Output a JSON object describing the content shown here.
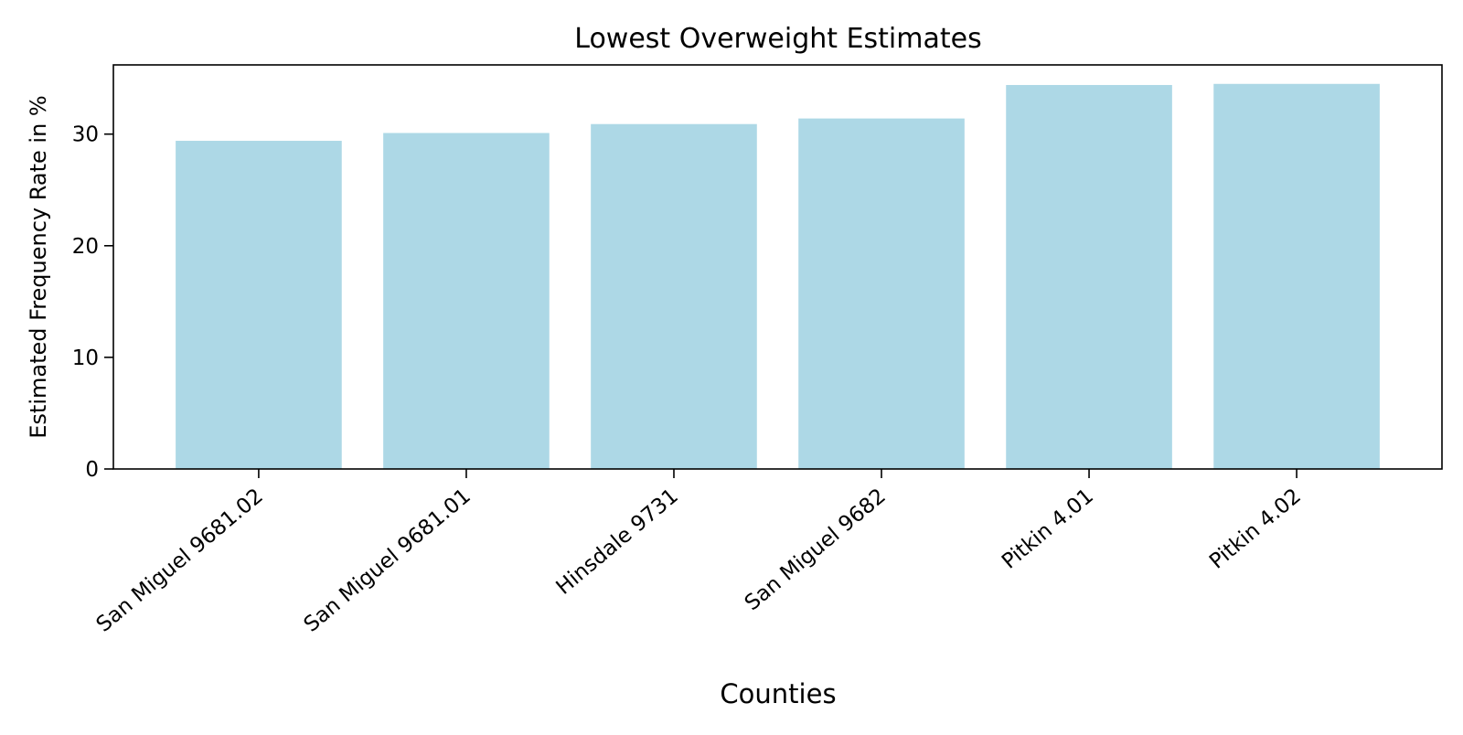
{
  "chart_data": {
    "type": "bar",
    "title": "Lowest Overweight Estimates",
    "xlabel": "Counties",
    "ylabel": "Estimated Frequency Rate in %",
    "categories": [
      "San Miguel 9681.02",
      "San Miguel 9681.01",
      "Hinsdale 9731",
      "San Miguel 9682",
      "Pitkin 4.01",
      "Pitkin 4.02"
    ],
    "values": [
      29.4,
      30.1,
      30.9,
      31.4,
      34.4,
      34.5
    ],
    "ylim": [
      0,
      36.2
    ],
    "yticks": [
      0,
      10,
      20,
      30
    ],
    "grid": false,
    "legend": "none",
    "bar_color": "#add8e6"
  }
}
